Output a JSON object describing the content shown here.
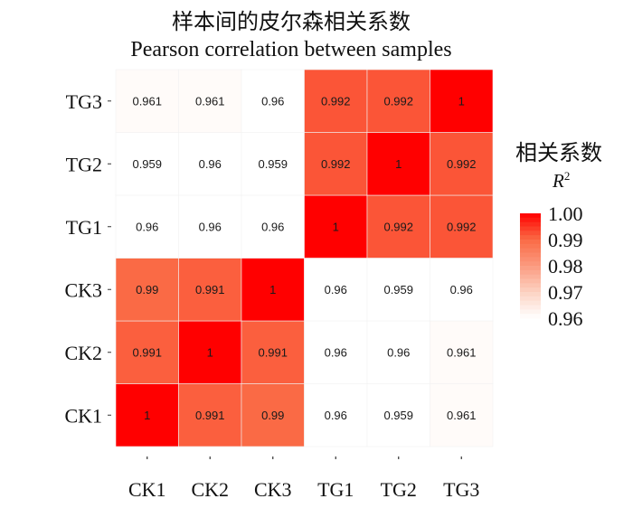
{
  "chart_data": {
    "type": "heatmap",
    "title": "样本间的皮尔森相关系数",
    "subtitle": "Pearson correlation between samples",
    "x_categories": [
      "CK1",
      "CK2",
      "CK3",
      "TG1",
      "TG2",
      "TG3"
    ],
    "y_categories": [
      "CK1",
      "CK2",
      "CK3",
      "TG1",
      "TG2",
      "TG3"
    ],
    "values": [
      [
        1,
        0.991,
        0.99,
        0.96,
        0.959,
        0.961
      ],
      [
        0.991,
        1,
        0.991,
        0.96,
        0.96,
        0.961
      ],
      [
        0.99,
        0.991,
        1,
        0.96,
        0.959,
        0.96
      ],
      [
        0.96,
        0.96,
        0.96,
        1,
        0.992,
        0.992
      ],
      [
        0.959,
        0.96,
        0.959,
        0.992,
        1,
        0.992
      ],
      [
        0.961,
        0.961,
        0.96,
        0.992,
        0.992,
        1
      ]
    ],
    "labels": [
      [
        "1",
        "0.991",
        "0.99",
        "0.96",
        "0.959",
        "0.961"
      ],
      [
        "0.991",
        "1",
        "0.991",
        "0.96",
        "0.96",
        "0.961"
      ],
      [
        "0.99",
        "0.991",
        "1",
        "0.96",
        "0.959",
        "0.96"
      ],
      [
        "0.96",
        "0.96",
        "0.96",
        "1",
        "0.992",
        "0.992"
      ],
      [
        "0.959",
        "0.96",
        "0.959",
        "0.992",
        "1",
        "0.992"
      ],
      [
        "0.961",
        "0.961",
        "0.96",
        "0.992",
        "0.992",
        "1"
      ]
    ],
    "legend": {
      "title": "相关系数",
      "subtitle": "R",
      "subtitle_sup": "2",
      "ticks": [
        "1.00",
        "0.99",
        "0.98",
        "0.97",
        "0.96"
      ],
      "tick_values": [
        1.0,
        0.99,
        0.98,
        0.97,
        0.96
      ],
      "placement": "right"
    },
    "color_scale": {
      "min": 0.96,
      "max": 1.0,
      "stops": [
        "#ffffff",
        "#fcd2c2",
        "#fb9a7f",
        "#fa6a45",
        "#ff0000"
      ]
    },
    "grid": false
  }
}
